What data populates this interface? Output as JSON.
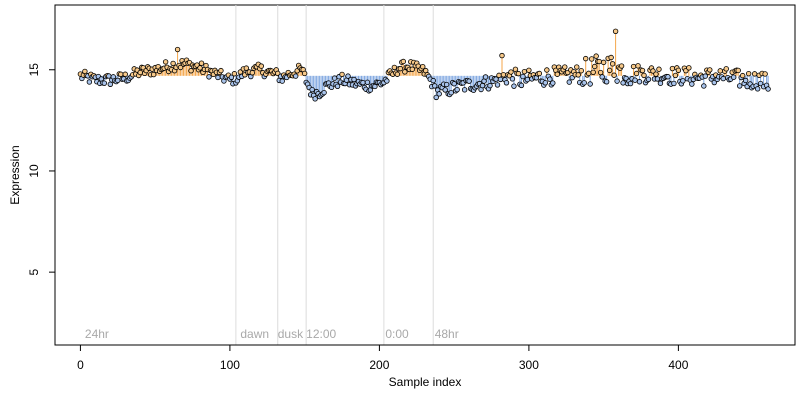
{
  "chart_data": {
    "type": "scatter",
    "xlabel": "Sample index",
    "ylabel": "Expression",
    "xlim": [
      -17,
      478
    ],
    "ylim": [
      1.4,
      18.2
    ],
    "x_ticks": [
      0,
      100,
      200,
      300,
      400
    ],
    "y_ticks": [
      5,
      10,
      15
    ],
    "colors": {
      "point_low": "#a9c4ec",
      "point_high": "#f7c98a",
      "stem_low": "#7ea6e0",
      "stem_high": "#f4a64a",
      "point_stroke": "#000000",
      "separator": "#dcdcdc",
      "annotation": "#a9a9a9",
      "baseline": 14.7
    },
    "separators": [
      104,
      132,
      151,
      203,
      236
    ],
    "annotations": [
      {
        "x": 3,
        "text": "24hr"
      },
      {
        "x": 107,
        "text": "dawn"
      },
      {
        "x": 132,
        "text": "dusk"
      },
      {
        "x": 151,
        "text": "12:00"
      },
      {
        "x": 204,
        "text": "0:00"
      },
      {
        "x": 237,
        "text": "48hr"
      }
    ],
    "anchors": [
      [
        0,
        14.7
      ],
      [
        10,
        14.5
      ],
      [
        20,
        14.5
      ],
      [
        30,
        14.6
      ],
      [
        40,
        14.9
      ],
      [
        50,
        15.0
      ],
      [
        60,
        15.2
      ],
      [
        70,
        15.3
      ],
      [
        80,
        15.1
      ],
      [
        90,
        14.8
      ],
      [
        100,
        14.5
      ],
      [
        105,
        14.6
      ],
      [
        110,
        14.9
      ],
      [
        120,
        15.0
      ],
      [
        130,
        14.8
      ],
      [
        135,
        14.6
      ],
      [
        140,
        14.8
      ],
      [
        148,
        15.0
      ],
      [
        152,
        14.3
      ],
      [
        155,
        13.8
      ],
      [
        160,
        13.9
      ],
      [
        165,
        14.2
      ],
      [
        175,
        14.5
      ],
      [
        185,
        14.3
      ],
      [
        195,
        14.2
      ],
      [
        203,
        14.4
      ],
      [
        207,
        14.7
      ],
      [
        213,
        15.1
      ],
      [
        220,
        15.2
      ],
      [
        230,
        14.9
      ],
      [
        235,
        14.4
      ],
      [
        238,
        13.9
      ],
      [
        245,
        14.0
      ],
      [
        255,
        14.2
      ],
      [
        265,
        14.3
      ],
      [
        275,
        14.4
      ],
      [
        285,
        14.7
      ],
      [
        295,
        14.5
      ],
      [
        305,
        14.6
      ],
      [
        315,
        14.7
      ],
      [
        325,
        14.7
      ],
      [
        335,
        14.8
      ],
      [
        345,
        15.0
      ],
      [
        355,
        15.1
      ],
      [
        365,
        14.9
      ],
      [
        375,
        14.8
      ],
      [
        385,
        14.8
      ],
      [
        395,
        14.7
      ],
      [
        405,
        14.7
      ],
      [
        415,
        14.6
      ],
      [
        425,
        14.7
      ],
      [
        435,
        14.6
      ],
      [
        445,
        14.5
      ],
      [
        455,
        14.5
      ],
      [
        460,
        14.3
      ]
    ],
    "n_points": 461
  }
}
